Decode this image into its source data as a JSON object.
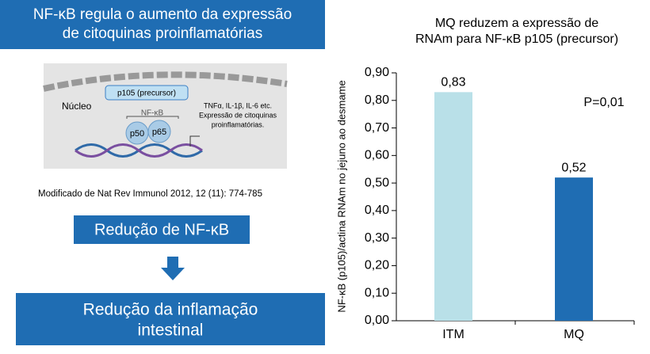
{
  "header": {
    "title_lines": [
      "NF-κB regula o aumento da expressão",
      "de citoquinas proinflamatórias"
    ]
  },
  "diagram": {
    "precursor": "p105 (precursor)",
    "nucleus": "Núcleo",
    "complex": "NF-κB",
    "subunits": [
      "p50",
      "p65"
    ],
    "targets": [
      "TNFα, IL-1β, IL-6 etc.",
      "Expressão de citoquinas",
      "proinflamatórias."
    ]
  },
  "citation": "Modificado de Nat Rev Immunol 2012, 12 (11): 774-785",
  "box1": "Redução de NF-κB",
  "box2_lines": [
    "Redução da inflamação",
    "intestinal"
  ],
  "chart_data": {
    "type": "bar",
    "title_lines": [
      "MQ reduzem a expressão de",
      "RNAm para NF-κB p105 (precursor)"
    ],
    "ylabel": "NF-κB (p105)/actina RNAm no jejuno ao desmame",
    "annotation": "P=0,01",
    "categories": [
      "ITM",
      "MQ"
    ],
    "values": [
      0.83,
      0.52
    ],
    "value_labels": [
      "0,83",
      "0,52"
    ],
    "colors": [
      "#b9e0e8",
      "#1f6db3"
    ],
    "ylim": [
      0,
      0.9
    ],
    "yticks": [
      {
        "value": 0,
        "label": "0,00"
      },
      {
        "value": 0.1,
        "label": "0,10"
      },
      {
        "value": 0.2,
        "label": "0,20"
      },
      {
        "value": 0.3,
        "label": "0,30"
      },
      {
        "value": 0.4,
        "label": "0,40"
      },
      {
        "value": 0.5,
        "label": "0,50"
      },
      {
        "value": 0.6,
        "label": "0,60"
      },
      {
        "value": 0.7,
        "label": "0,70"
      },
      {
        "value": 0.8,
        "label": "0,80"
      },
      {
        "value": 0.9,
        "label": "0,90"
      }
    ]
  }
}
